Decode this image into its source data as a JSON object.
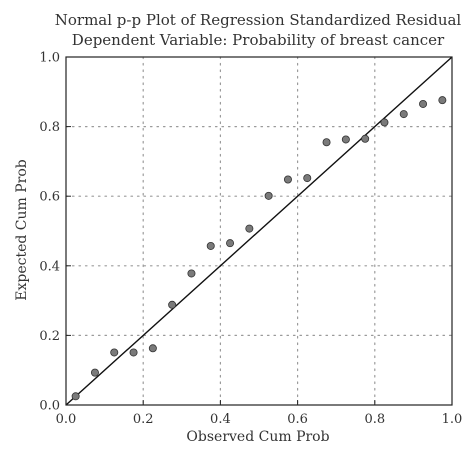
{
  "chart_data": {
    "type": "scatter",
    "title": "Normal p-p Plot of Regression Standardized Residual",
    "subtitle": "Dependent Variable: Probability of breast cancer",
    "xlabel": "Observed Cum Prob",
    "ylabel": "Expected Cum Prob",
    "xlim": [
      0,
      1
    ],
    "ylim": [
      0,
      1
    ],
    "x_ticks": [
      "0.0",
      "0.2",
      "0.4",
      "0.6",
      "0.8",
      "1.0"
    ],
    "y_ticks": [
      "0.0",
      "0.2",
      "0.4",
      "0.6",
      "0.8",
      "1.0"
    ],
    "grid": "dotted",
    "reference_line": [
      [
        0,
        0
      ],
      [
        1,
        1
      ]
    ],
    "points": [
      {
        "x": 0.025,
        "y": 0.025
      },
      {
        "x": 0.075,
        "y": 0.093
      },
      {
        "x": 0.125,
        "y": 0.151
      },
      {
        "x": 0.175,
        "y": 0.151
      },
      {
        "x": 0.225,
        "y": 0.163
      },
      {
        "x": 0.275,
        "y": 0.288
      },
      {
        "x": 0.325,
        "y": 0.378
      },
      {
        "x": 0.375,
        "y": 0.457
      },
      {
        "x": 0.425,
        "y": 0.465
      },
      {
        "x": 0.475,
        "y": 0.507
      },
      {
        "x": 0.525,
        "y": 0.601
      },
      {
        "x": 0.575,
        "y": 0.648
      },
      {
        "x": 0.625,
        "y": 0.652
      },
      {
        "x": 0.675,
        "y": 0.755
      },
      {
        "x": 0.725,
        "y": 0.763
      },
      {
        "x": 0.775,
        "y": 0.765
      },
      {
        "x": 0.825,
        "y": 0.812
      },
      {
        "x": 0.875,
        "y": 0.836
      },
      {
        "x": 0.925,
        "y": 0.865
      },
      {
        "x": 0.975,
        "y": 0.876
      }
    ],
    "colors": {
      "point_fill": "#7a7a7a",
      "point_stroke": "#333333",
      "line": "#111111",
      "grid": "#9a9a9a",
      "frame": "#222222"
    }
  }
}
